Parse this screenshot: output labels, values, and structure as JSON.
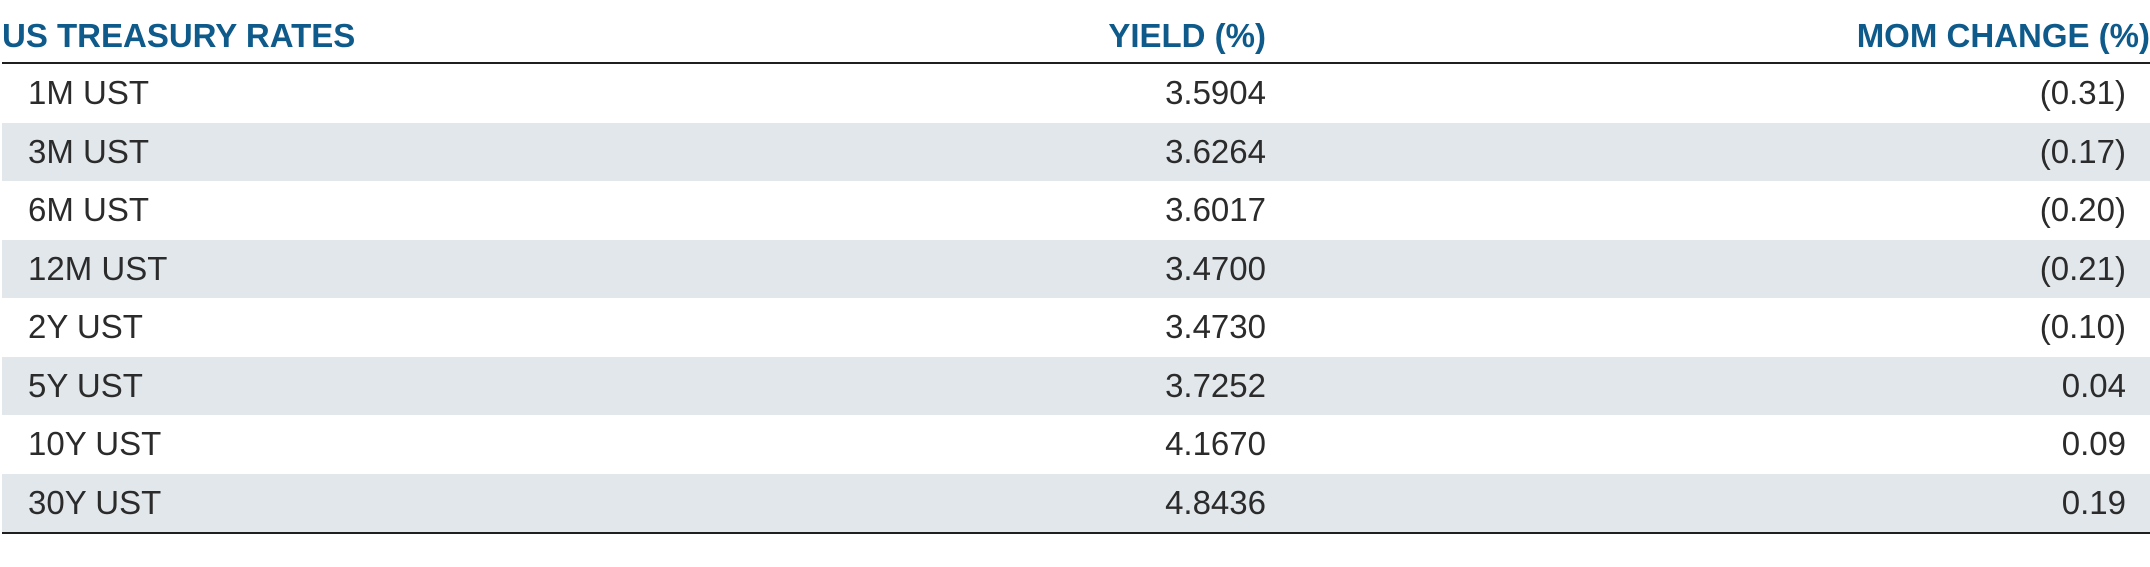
{
  "table": {
    "headers": {
      "name": "US TREASURY RATES",
      "yield": "YIELD (%)",
      "mom": "MOM CHANGE (%)"
    },
    "rows": [
      {
        "name": "1M UST",
        "yield": "3.5904",
        "mom": "(0.31)"
      },
      {
        "name": "3M UST",
        "yield": "3.6264",
        "mom": "(0.17)"
      },
      {
        "name": "6M UST",
        "yield": "3.6017",
        "mom": "(0.20)"
      },
      {
        "name": "12M UST",
        "yield": "3.4700",
        "mom": "(0.21)"
      },
      {
        "name": "2Y UST",
        "yield": "3.4730",
        "mom": "(0.10)"
      },
      {
        "name": "5Y UST",
        "yield": "3.7252",
        "mom": "0.04"
      },
      {
        "name": "10Y UST",
        "yield": "4.1670",
        "mom": "0.09"
      },
      {
        "name": "30Y UST",
        "yield": "4.8436",
        "mom": "0.19"
      }
    ]
  },
  "colors": {
    "header_text": "#0e5a8a",
    "row_shade": "#e1e7eb",
    "body_text": "#2b2b2b",
    "rule": "#1f1f1f"
  }
}
